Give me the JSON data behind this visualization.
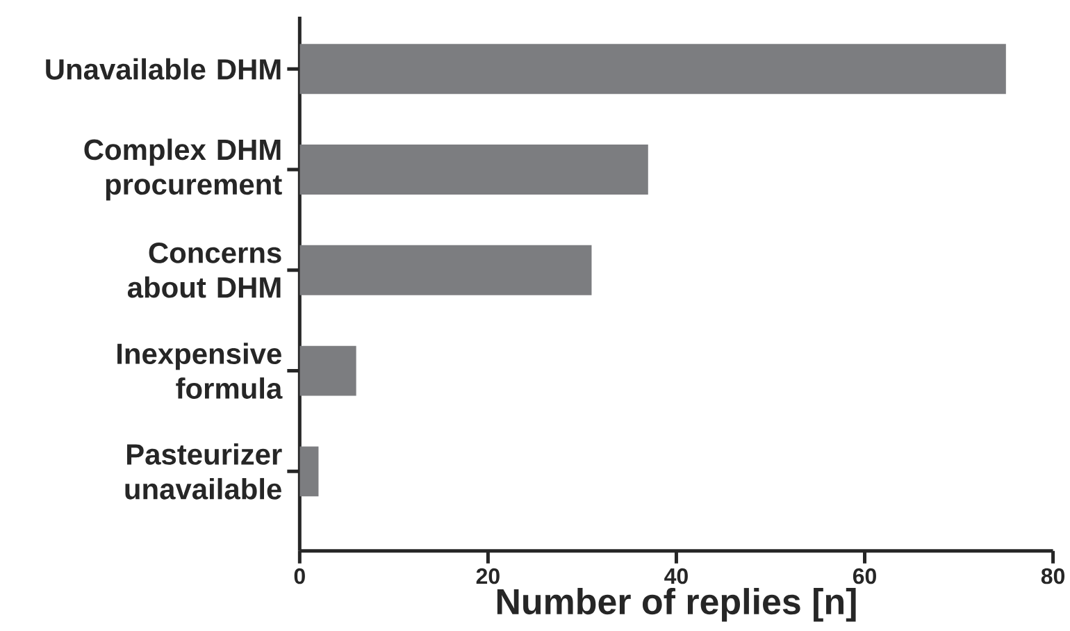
{
  "chart_data": {
    "type": "bar",
    "orientation": "horizontal",
    "xlabel": "Number of replies [n]",
    "categories": [
      "Unavailable DHM",
      "Complex DHM procurement",
      "Concerns about DHM",
      "Inexpensive formula",
      "Pasteurizer unavailable"
    ],
    "values": [
      75,
      37,
      31,
      6,
      2
    ],
    "color": "#7c7d80",
    "xlim": [
      0,
      80
    ],
    "xticks": [
      0,
      20,
      40,
      60,
      80
    ]
  }
}
